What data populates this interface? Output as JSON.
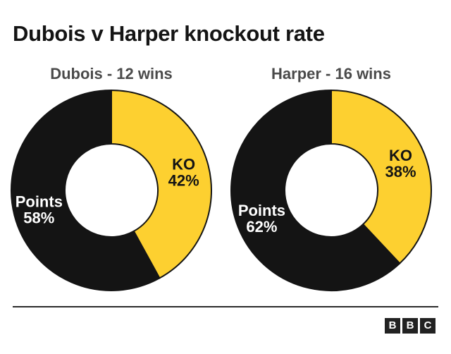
{
  "title": "Dubois v Harper knockout rate",
  "colors": {
    "ko": "#fdd030",
    "points": "#141414",
    "divider": "#2b2b2b"
  },
  "logo": {
    "letters": [
      "B",
      "B",
      "C"
    ]
  },
  "chart_data": [
    {
      "type": "pie",
      "subtitle": "Dubois - 12 wins",
      "slices": [
        {
          "label": "KO",
          "value": 42,
          "display": "42%"
        },
        {
          "label": "Points",
          "value": 58,
          "display": "58%"
        }
      ]
    },
    {
      "type": "pie",
      "subtitle": "Harper - 16 wins",
      "slices": [
        {
          "label": "KO",
          "value": 38,
          "display": "38%"
        },
        {
          "label": "Points",
          "value": 62,
          "display": "62%"
        }
      ]
    }
  ]
}
